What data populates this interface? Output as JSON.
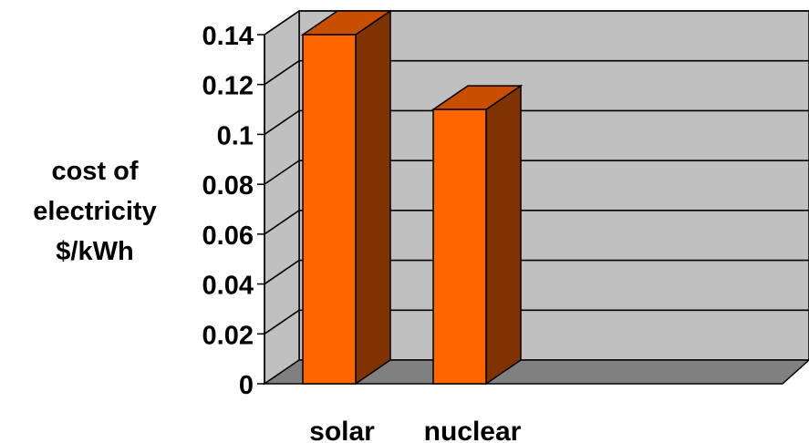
{
  "chart_data": {
    "type": "bar",
    "title": "",
    "xlabel": "",
    "ylabel_lines": [
      "cost of",
      "electricity",
      "$/kWh"
    ],
    "categories": [
      "solar",
      "nuclear"
    ],
    "values": [
      0.14,
      0.11
    ],
    "ylim": [
      0,
      0.14
    ],
    "yticks": [
      0,
      0.02,
      0.04,
      0.06,
      0.08,
      0.1,
      0.12,
      0.14
    ],
    "ytick_labels": [
      "0",
      "0.02",
      "0.04",
      "0.06",
      "0.08",
      "0.1",
      "0.12",
      "0.14"
    ],
    "grid": true,
    "legend": "none",
    "colors": {
      "bar_front": "#ff6600",
      "bar_side": "#7f3300",
      "bar_top": "#c84e00",
      "wall": "#c0c0c0",
      "floor": "#808080",
      "gridline": "#000000"
    }
  }
}
